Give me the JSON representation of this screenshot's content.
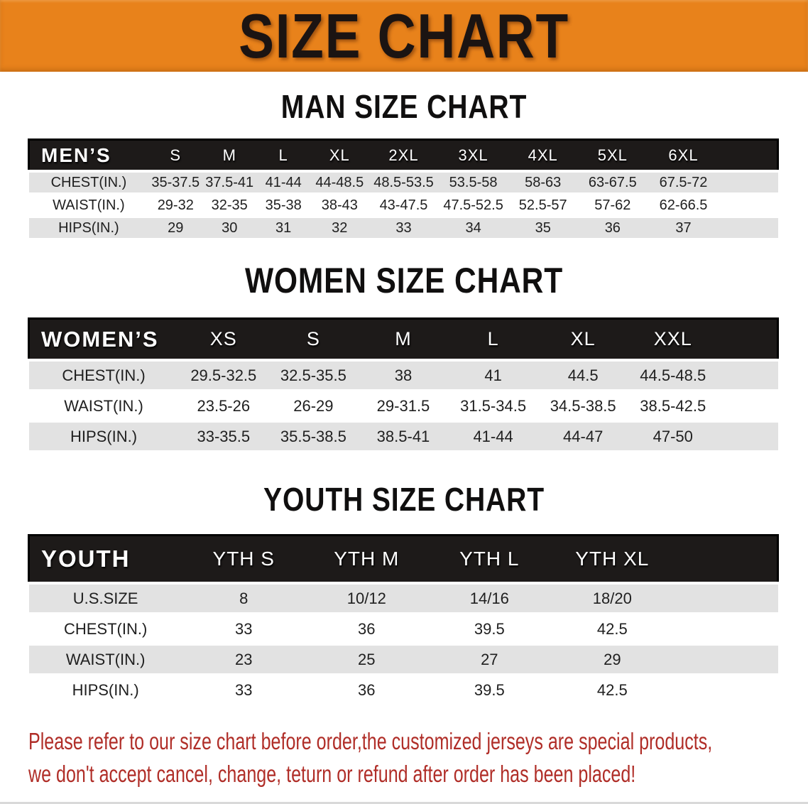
{
  "banner": {
    "title": "SIZE CHART"
  },
  "theme": {
    "banner-bg": "#E8821B",
    "header-bg": "#1D1A19",
    "row-alt": "#E2E2E2",
    "disclaimer-color": "#B02E28"
  },
  "sections": [
    {
      "key": "men",
      "heading": "MAN SIZE CHART",
      "table": {
        "label": "MEN’S",
        "columns": [
          "S",
          "M",
          "L",
          "XL",
          "2XL",
          "3XL",
          "4XL",
          "5XL",
          "6XL"
        ],
        "rows": [
          {
            "label": "CHEST(IN.)",
            "values": [
              "35-37.5",
              "37.5-41",
              "41-44",
              "44-48.5",
              "48.5-53.5",
              "53.5-58",
              "58-63",
              "63-67.5",
              "67.5-72"
            ]
          },
          {
            "label": "WAIST(IN.)",
            "values": [
              "29-32",
              "32-35",
              "35-38",
              "38-43",
              "43-47.5",
              "47.5-52.5",
              "52.5-57",
              "57-62",
              "62-66.5"
            ]
          },
          {
            "label": "HIPS(IN.)",
            "values": [
              "29",
              "30",
              "31",
              "32",
              "33",
              "34",
              "35",
              "36",
              "37"
            ]
          }
        ]
      }
    },
    {
      "key": "women",
      "heading": "WOMEN SIZE CHART",
      "table": {
        "label": "WOMEN’S",
        "columns": [
          "XS",
          "S",
          "M",
          "L",
          "XL",
          "XXL"
        ],
        "rows": [
          {
            "label": "CHEST(IN.)",
            "values": [
              "29.5-32.5",
              "32.5-35.5",
              "38",
              "41",
              "44.5",
              "44.5-48.5"
            ]
          },
          {
            "label": "WAIST(IN.)",
            "values": [
              "23.5-26",
              "26-29",
              "29-31.5",
              "31.5-34.5",
              "34.5-38.5",
              "38.5-42.5"
            ]
          },
          {
            "label": "HIPS(IN.)",
            "values": [
              "33-35.5",
              "35.5-38.5",
              "38.5-41",
              "41-44",
              "44-47",
              "47-50"
            ]
          }
        ]
      }
    },
    {
      "key": "youth",
      "heading": "YOUTH SIZE CHART",
      "table": {
        "label": "YOUTH",
        "columns": [
          "YTH S",
          "YTH M",
          "YTH L",
          "YTH XL"
        ],
        "rows": [
          {
            "label": "U.S.SIZE",
            "values": [
              "8",
              "10/12",
              "14/16",
              "18/20"
            ]
          },
          {
            "label": "CHEST(IN.)",
            "values": [
              "33",
              "36",
              "39.5",
              "42.5"
            ]
          },
          {
            "label": "WAIST(IN.)",
            "values": [
              "23",
              "25",
              "27",
              "29"
            ]
          },
          {
            "label": "HIPS(IN.)",
            "values": [
              "33",
              "36",
              "39.5",
              "42.5"
            ]
          }
        ]
      }
    }
  ],
  "disclaimer": {
    "lines": [
      "Please refer to our size chart before order,the customized jerseys are special products,",
      "we don't accept cancel, change, teturn or refund after order has been placed!"
    ]
  }
}
